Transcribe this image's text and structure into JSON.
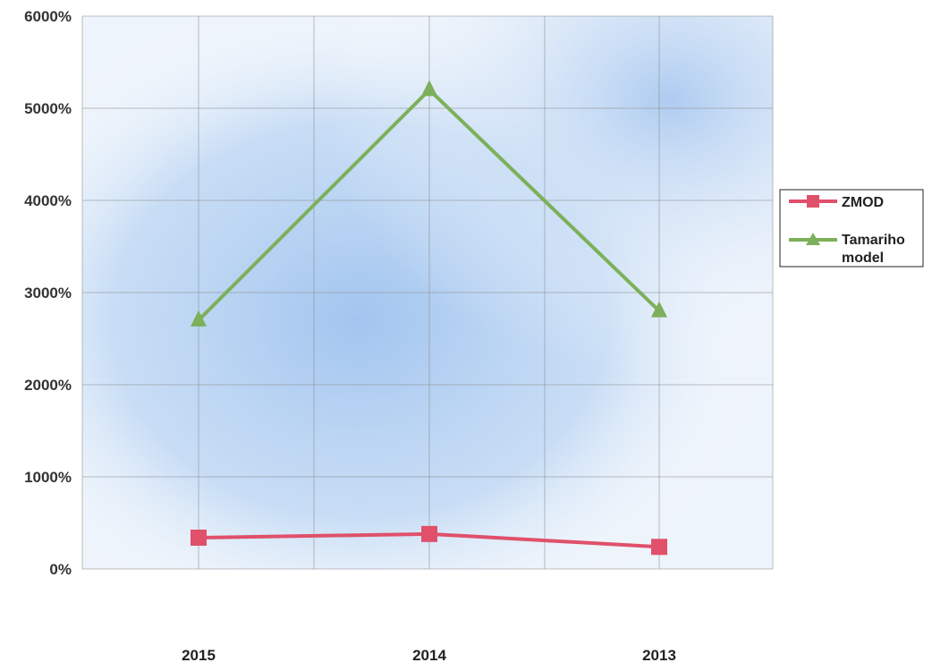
{
  "chart_data": {
    "type": "line",
    "categories": [
      "2015",
      "2014",
      "2013"
    ],
    "yticks": [
      "0%",
      "1000%",
      "2000%",
      "3000%",
      "4000%",
      "5000%",
      "6000%"
    ],
    "ylim": [
      0,
      6000
    ],
    "grid": true,
    "legend_position": "right",
    "series": [
      {
        "name": "ZMOD",
        "values": [
          340,
          380,
          240
        ],
        "color": "#e0506a",
        "marker": "square"
      },
      {
        "name": "Tamariho model",
        "name_lines": [
          "Tamariho",
          "model"
        ],
        "values": [
          2700,
          5200,
          2800
        ],
        "color": "#7cb05a",
        "marker": "triangle"
      }
    ],
    "colors": {
      "plot_bg": "#b7d3f2",
      "grid": "#8a8a8a"
    }
  }
}
